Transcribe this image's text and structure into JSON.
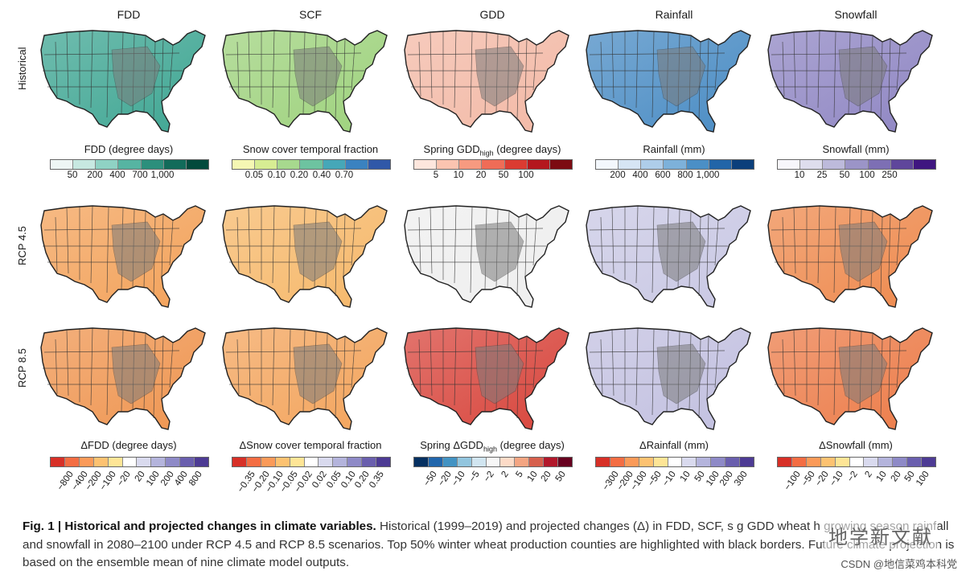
{
  "columns": [
    "FDD",
    "SCF",
    "GDD",
    "Rainfall",
    "Snowfall"
  ],
  "rows": [
    "Historical",
    "RCP 4.5",
    "RCP 8.5"
  ],
  "legends_hist": [
    {
      "title": "FDD (degree days)",
      "ticks": [
        "50",
        "200",
        "400",
        "700",
        "1,000"
      ],
      "colors": [
        "#eef6f4",
        "#c7e8e1",
        "#8fd2c4",
        "#56b4a2",
        "#2c8f7c",
        "#126b5a",
        "#024a3c"
      ]
    },
    {
      "title": "Snow cover temporal fraction",
      "ticks": [
        "0.05",
        "0.10",
        "0.20",
        "0.40",
        "0.70"
      ],
      "colors": [
        "#f5f7b3",
        "#d7ed93",
        "#a7d98e",
        "#6dc3a0",
        "#46a7b8",
        "#3a82c0",
        "#3058a8"
      ]
    },
    {
      "title": "Spring GDD",
      "title_sub": "high",
      "title_tail": " (degree days)",
      "ticks": [
        "5",
        "10",
        "20",
        "50",
        "100"
      ],
      "colors": [
        "#fde6dd",
        "#fbc4b0",
        "#f79a80",
        "#ef6c57",
        "#db3b31",
        "#b4171e",
        "#7c0b12"
      ]
    },
    {
      "title": "Rainfall (mm)",
      "ticks": [
        "200",
        "400",
        "600",
        "800",
        "1,000"
      ],
      "colors": [
        "#f3f7fc",
        "#d6e5f4",
        "#aecde9",
        "#7db1da",
        "#4b8fc6",
        "#2265a8",
        "#0b3f7b"
      ]
    },
    {
      "title": "Snowfall (mm)",
      "ticks": [
        "10",
        "25",
        "50",
        "100",
        "250"
      ],
      "colors": [
        "#f7f6fb",
        "#dedded",
        "#bdbadb",
        "#9b94c7",
        "#7d6fb4",
        "#5f469b",
        "#3f1680"
      ]
    }
  ],
  "legends_delta": [
    {
      "title": "ΔFDD (degree days)",
      "ticks": [
        "−800",
        "−400",
        "−200",
        "−100",
        "−20",
        "20",
        "100",
        "200",
        "400",
        "800"
      ],
      "colors": [
        "#d73027",
        "#f46d43",
        "#fb9a59",
        "#fdc271",
        "#fee596",
        "#ffffff",
        "#d9daee",
        "#b4b4dc",
        "#8e8ac7",
        "#6a5fae",
        "#4d3b94"
      ]
    },
    {
      "title": "ΔSnow cover temporal fraction",
      "ticks": [
        "−0.35",
        "−0.20",
        "−0.10",
        "−0.05",
        "−0.02",
        "0.02",
        "0.05",
        "0.10",
        "0.20",
        "0.35"
      ],
      "colors": [
        "#d73027",
        "#f46d43",
        "#fb9a59",
        "#fdc271",
        "#fee596",
        "#ffffff",
        "#d9daee",
        "#b4b4dc",
        "#8e8ac7",
        "#6a5fae",
        "#4d3b94"
      ]
    },
    {
      "title": "Spring ΔGDD",
      "title_sub": "high",
      "title_tail": " (degree days)",
      "ticks": [
        "−50",
        "−20",
        "−10",
        "−5",
        "−2",
        "2",
        "5",
        "10",
        "20",
        "50"
      ],
      "colors": [
        "#053061",
        "#2166ac",
        "#4393c3",
        "#92c5de",
        "#d1e5f0",
        "#f7f7f7",
        "#fddbc7",
        "#f4a582",
        "#d6604d",
        "#b2182b",
        "#67001f"
      ]
    },
    {
      "title": "ΔRainfall (mm)",
      "ticks": [
        "−300",
        "−200",
        "−100",
        "−50",
        "−10",
        "10",
        "50",
        "100",
        "200",
        "300"
      ],
      "colors": [
        "#d73027",
        "#f46d43",
        "#fb9a59",
        "#fdc271",
        "#fee596",
        "#ffffff",
        "#d9daee",
        "#b4b4dc",
        "#8e8ac7",
        "#6a5fae",
        "#4d3b94"
      ]
    },
    {
      "title": "ΔSnowfall (mm)",
      "ticks": [
        "−100",
        "−50",
        "−20",
        "−10",
        "−2",
        "2",
        "10",
        "20",
        "50",
        "100"
      ],
      "colors": [
        "#d73027",
        "#f46d43",
        "#fb9a59",
        "#fdc271",
        "#fee596",
        "#ffffff",
        "#d9daee",
        "#b4b4dc",
        "#8e8ac7",
        "#6a5fae",
        "#4d3b94"
      ]
    }
  ],
  "map_fill": [
    [
      "#3fa693",
      "#9ed27d",
      "#f3b9a6",
      "#4a8cc4",
      "#8f86c3"
    ],
    [
      "#f3a25a",
      "#f6b86a",
      "#eeeeee",
      "#c9c8e4",
      "#ee8a4e"
    ],
    [
      "#ef9550",
      "#f3a45c",
      "#d8453c",
      "#c2c0e0",
      "#ec7c49"
    ]
  ],
  "caption": {
    "label": "Fig. 1 | Historical and projected changes in climate variables.",
    "text": " Historical (1999–2019) and projected changes (Δ) in FDD, SCF, s  g GDD  wheat  h  growing season rainfall and snowfall in 2080–2100 under RCP 4.5 and RCP 8.5 scenarios. Top 50% winter wheat production counties are highlighted with black borders. Future climate projection is based on the ensemble mean of nine climate model outputs."
  },
  "watermark": {
    "logo": "地学新文献",
    "credit": "CSDN @地信菜鸡本科党"
  }
}
